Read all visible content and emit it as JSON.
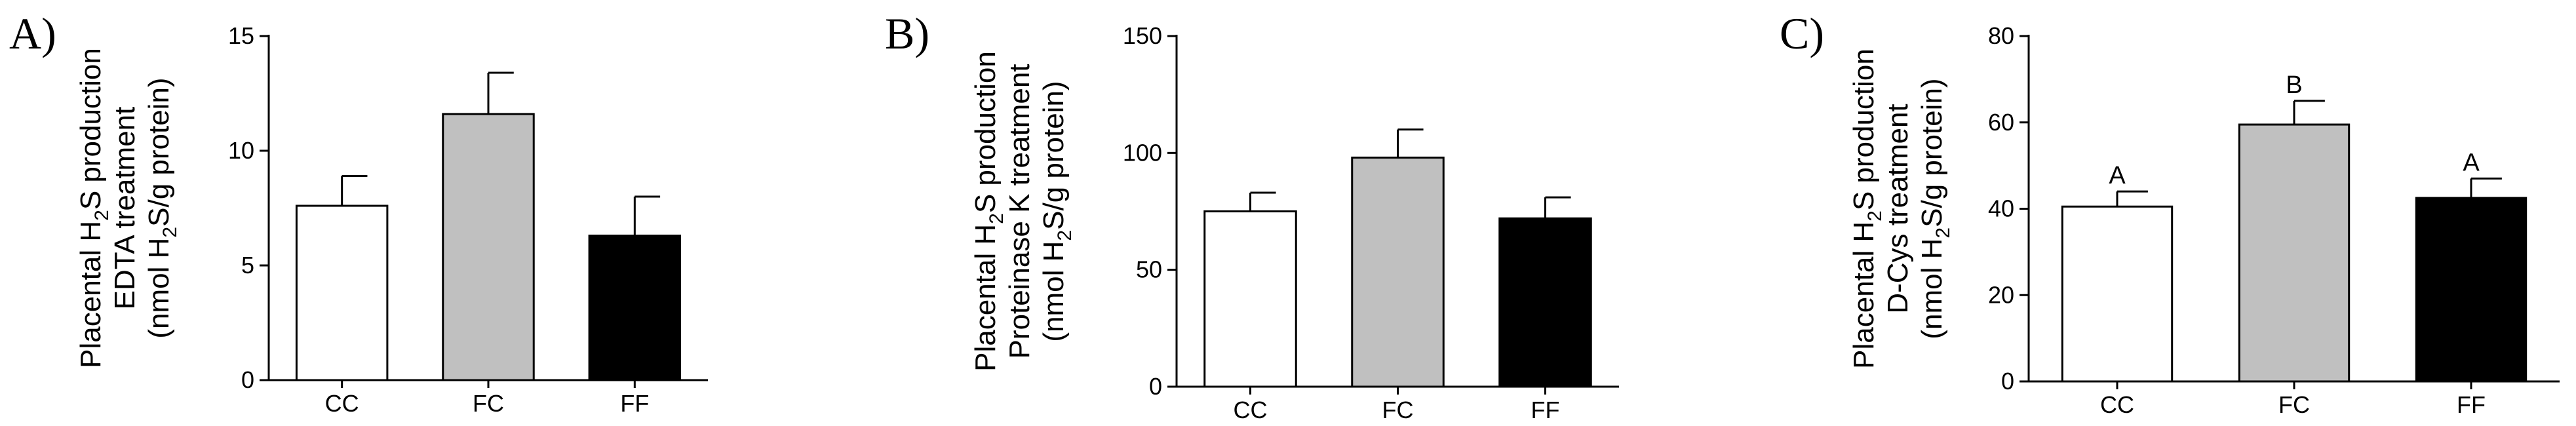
{
  "chart_data": [
    {
      "type": "bar",
      "panel_label": "A)",
      "ylabel": {
        "line1_pre": "Placental H",
        "line1_sub": "2",
        "line1_post": "S production",
        "line2": "EDTA treatment",
        "line3_pre": "(nmol H",
        "line3_sub": "2",
        "line3_post": "S/g protein)"
      },
      "categories": [
        "CC",
        "FC",
        "FF"
      ],
      "values": [
        7.6,
        11.6,
        6.3
      ],
      "errors": [
        1.3,
        1.8,
        1.7
      ],
      "colors": [
        "#ffffff",
        "#c0c0c0",
        "#000000"
      ],
      "ylim": [
        0,
        15
      ],
      "yticks": [
        0,
        5,
        10,
        15
      ],
      "annotations": []
    },
    {
      "type": "bar",
      "panel_label": "B)",
      "ylabel": {
        "line1_pre": "Placental H",
        "line1_sub": "2",
        "line1_post": "S production",
        "line2": "Proteinase K treatment",
        "line3_pre": "(nmol H",
        "line3_sub": "2",
        "line3_post": "S/g protein)"
      },
      "categories": [
        "CC",
        "FC",
        "FF"
      ],
      "values": [
        75,
        98,
        72
      ],
      "errors": [
        8,
        12,
        9
      ],
      "colors": [
        "#ffffff",
        "#c0c0c0",
        "#000000"
      ],
      "ylim": [
        0,
        150
      ],
      "yticks": [
        0,
        50,
        100,
        150
      ],
      "annotations": []
    },
    {
      "type": "bar",
      "panel_label": "C)",
      "ylabel": {
        "line1_pre": "Placental H",
        "line1_sub": "2",
        "line1_post": "S production",
        "line2": "D-Cys treatment",
        "line3_pre": "(nmol H",
        "line3_sub": "2",
        "line3_post": "S/g protein)"
      },
      "categories": [
        "CC",
        "FC",
        "FF"
      ],
      "values": [
        40.5,
        59.5,
        42.5
      ],
      "errors": [
        3.5,
        5.5,
        4.5
      ],
      "colors": [
        "#ffffff",
        "#c0c0c0",
        "#000000"
      ],
      "ylim": [
        0,
        80
      ],
      "yticks": [
        0,
        20,
        40,
        60,
        80
      ],
      "annotations": [
        "A",
        "B",
        "A"
      ]
    }
  ]
}
